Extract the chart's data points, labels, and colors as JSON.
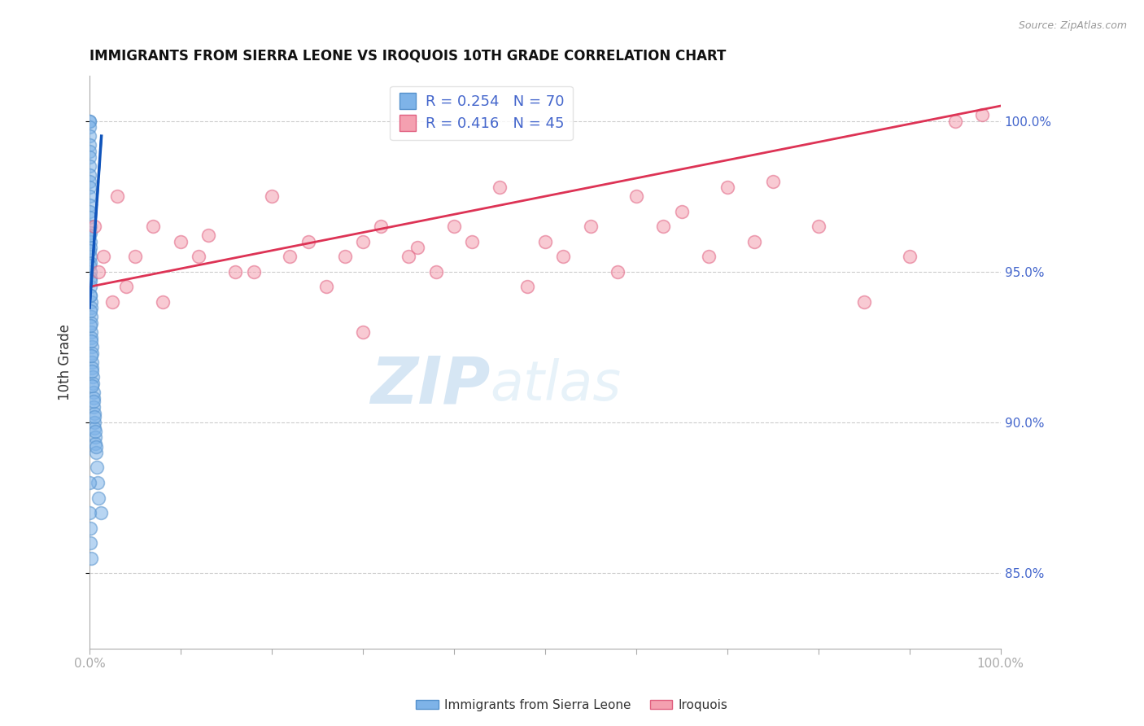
{
  "title": "IMMIGRANTS FROM SIERRA LEONE VS IROQUOIS 10TH GRADE CORRELATION CHART",
  "source_text": "Source: ZipAtlas.com",
  "ylabel": "10th Grade",
  "right_yticks": [
    85.0,
    90.0,
    95.0,
    100.0
  ],
  "blue_label": "Immigrants from Sierra Leone",
  "pink_label": "Iroquois",
  "blue_R": 0.254,
  "blue_N": 70,
  "pink_R": 0.416,
  "pink_N": 45,
  "blue_color": "#7EB3E8",
  "pink_color": "#F4A0B0",
  "blue_edge_color": "#5591CC",
  "pink_edge_color": "#E06080",
  "blue_line_color": "#1155BB",
  "pink_line_color": "#DD3355",
  "blue_line_dash": [
    6,
    4
  ],
  "watermark_zip": "ZIP",
  "watermark_atlas": "atlas",
  "xmin": 0.0,
  "xmax": 100.0,
  "ymin": 82.5,
  "ymax": 101.5,
  "blue_scatter_x": [
    0.0,
    0.0,
    0.0,
    0.0,
    0.0,
    0.0,
    0.0,
    0.0,
    0.0,
    0.0,
    0.0,
    0.0,
    0.0,
    0.0,
    0.0,
    0.05,
    0.05,
    0.05,
    0.05,
    0.05,
    0.1,
    0.1,
    0.1,
    0.1,
    0.1,
    0.15,
    0.15,
    0.15,
    0.2,
    0.2,
    0.2,
    0.25,
    0.25,
    0.3,
    0.3,
    0.35,
    0.35,
    0.4,
    0.4,
    0.45,
    0.5,
    0.5,
    0.55,
    0.6,
    0.65,
    0.7,
    0.8,
    0.9,
    1.0,
    1.2,
    0.0,
    0.0,
    0.0,
    0.05,
    0.05,
    0.1,
    0.1,
    0.15,
    0.2,
    0.25,
    0.3,
    0.4,
    0.5,
    0.6,
    0.7,
    0.0,
    0.0,
    0.05,
    0.1,
    0.2
  ],
  "blue_scatter_y": [
    100.0,
    100.0,
    99.8,
    99.5,
    99.2,
    99.0,
    98.8,
    98.5,
    98.2,
    98.0,
    97.8,
    97.5,
    97.2,
    97.0,
    96.8,
    96.5,
    96.3,
    96.0,
    95.8,
    95.5,
    95.3,
    95.0,
    94.8,
    94.5,
    94.2,
    94.0,
    93.8,
    93.5,
    93.3,
    93.0,
    92.8,
    92.5,
    92.3,
    92.0,
    91.8,
    91.5,
    91.3,
    91.0,
    90.8,
    90.5,
    90.3,
    90.0,
    89.8,
    89.5,
    89.3,
    89.0,
    88.5,
    88.0,
    87.5,
    87.0,
    96.2,
    95.7,
    95.2,
    94.7,
    94.2,
    93.7,
    93.2,
    92.7,
    92.2,
    91.7,
    91.2,
    90.7,
    90.2,
    89.7,
    89.2,
    88.0,
    87.0,
    86.5,
    86.0,
    85.5
  ],
  "pink_scatter_x": [
    0.5,
    1.5,
    3.0,
    5.0,
    7.0,
    10.0,
    13.0,
    16.0,
    20.0,
    24.0,
    28.0,
    32.0,
    36.0,
    40.0,
    45.0,
    50.0,
    55.0,
    60.0,
    65.0,
    70.0,
    75.0,
    80.0,
    85.0,
    90.0,
    95.0,
    1.0,
    4.0,
    8.0,
    12.0,
    18.0,
    22.0,
    26.0,
    30.0,
    35.0,
    38.0,
    42.0,
    48.0,
    52.0,
    58.0,
    63.0,
    68.0,
    73.0,
    2.5,
    30.0,
    98.0
  ],
  "pink_scatter_y": [
    96.5,
    95.5,
    97.5,
    95.5,
    96.5,
    96.0,
    96.2,
    95.0,
    97.5,
    96.0,
    95.5,
    96.5,
    95.8,
    96.5,
    97.8,
    96.0,
    96.5,
    97.5,
    97.0,
    97.8,
    98.0,
    96.5,
    94.0,
    95.5,
    100.0,
    95.0,
    94.5,
    94.0,
    95.5,
    95.0,
    95.5,
    94.5,
    96.0,
    95.5,
    95.0,
    96.0,
    94.5,
    95.5,
    95.0,
    96.5,
    95.5,
    96.0,
    94.0,
    93.0,
    100.2
  ],
  "blue_trendline_x": [
    0.0,
    1.3
  ],
  "blue_trendline_y": [
    93.8,
    99.5
  ],
  "pink_trendline_x": [
    0.0,
    100.0
  ],
  "pink_trendline_y": [
    94.5,
    100.5
  ],
  "xtick_positions": [
    0,
    10,
    20,
    30,
    40,
    50,
    60,
    70,
    80,
    90,
    100
  ],
  "ytick_color": "#4466CC",
  "axis_color": "#AAAAAA",
  "grid_color": "#CCCCCC"
}
